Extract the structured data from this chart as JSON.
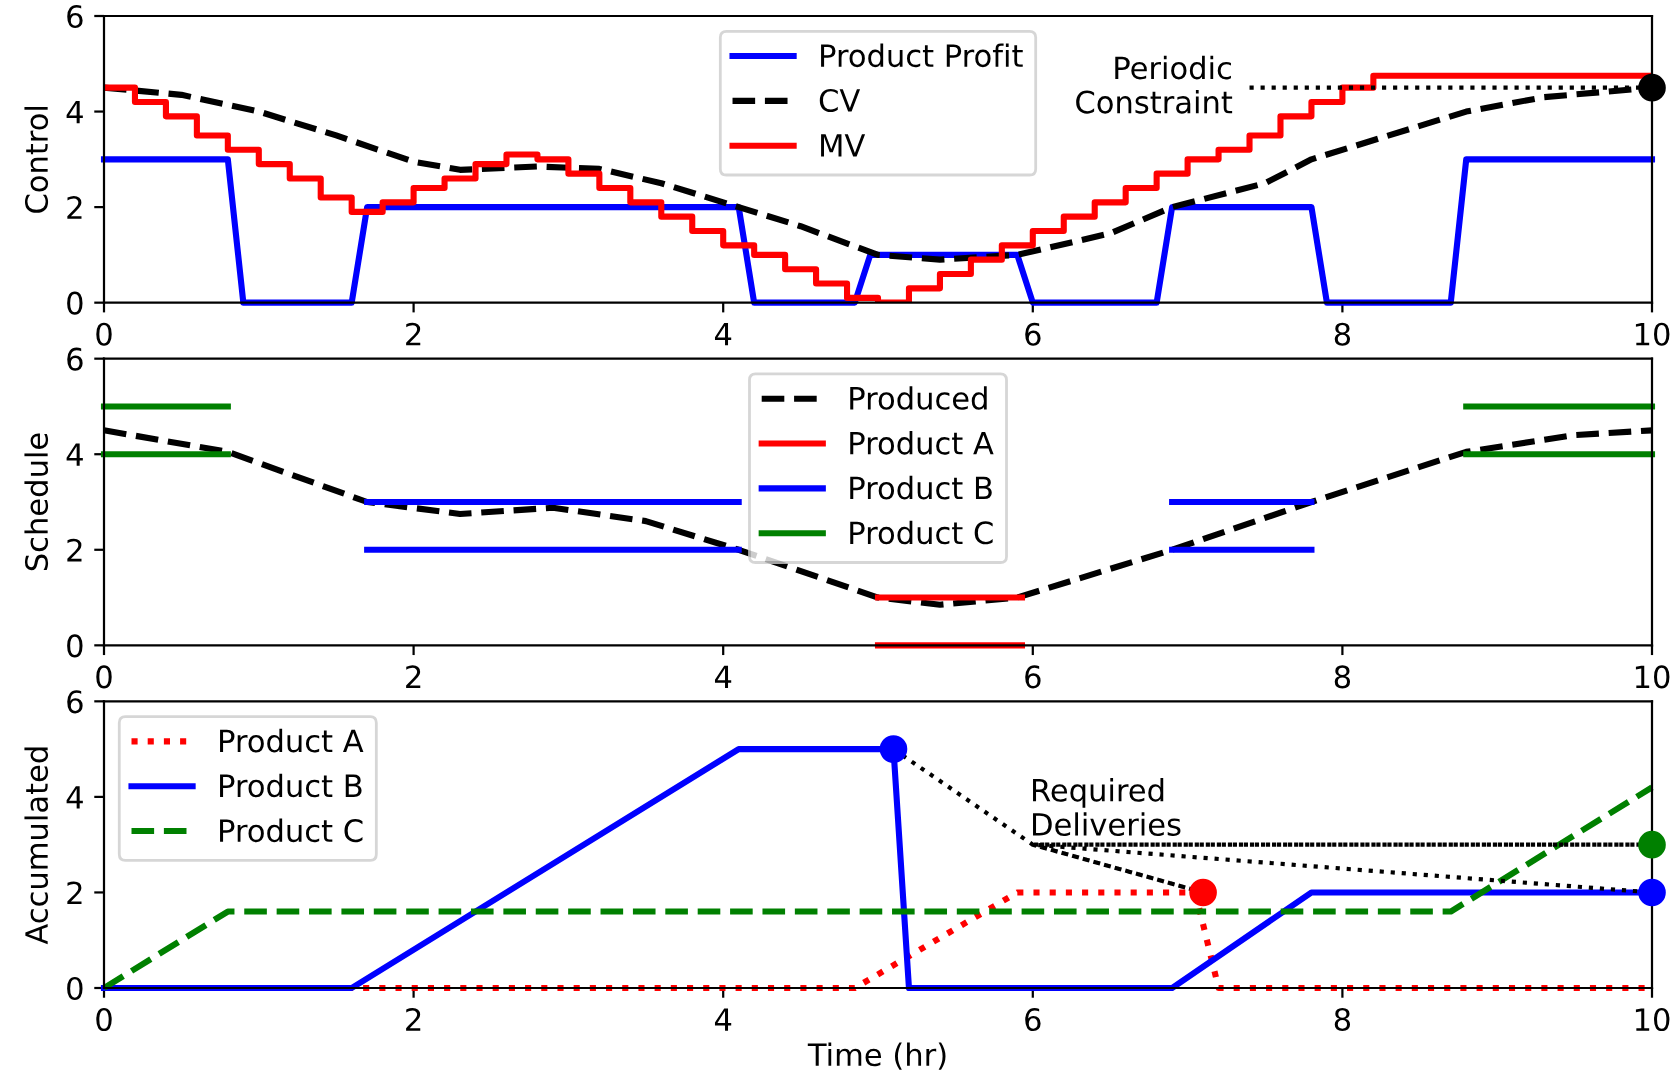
{
  "chart_data": [
    {
      "type": "line",
      "ylabel": "Control",
      "xlim": [
        0,
        10
      ],
      "ylim": [
        0,
        6
      ],
      "xticks": [
        0,
        2,
        4,
        6,
        8,
        10
      ],
      "yticks": [
        0,
        2,
        4,
        6
      ],
      "grid": false,
      "legend": "top",
      "annotations": [
        "Periodic\nConstraint"
      ],
      "series": [
        {
          "name": "Product Profit",
          "color": "#0000ff",
          "line_style": "solid",
          "x": [
            0,
            0.8,
            0.9,
            1.6,
            1.7,
            4.1,
            4.2,
            4.85,
            4.95,
            5.9,
            6.0,
            6.8,
            6.9,
            7.8,
            7.9,
            8.7,
            8.8,
            10
          ],
          "values": [
            3,
            3,
            0,
            0,
            2,
            2,
            0,
            0,
            1,
            1,
            0,
            0,
            2,
            2,
            0,
            0,
            3,
            3
          ]
        },
        {
          "name": "CV",
          "color": "#000000",
          "line_style": "dashed",
          "x": [
            0,
            0.5,
            1,
            1.5,
            2,
            2.3,
            2.8,
            3.2,
            3.6,
            4.1,
            4.5,
            5,
            5.4,
            5.9,
            6.5,
            6.9,
            7.5,
            7.8,
            8.5,
            8.8,
            9.3,
            10
          ],
          "values": [
            4.5,
            4.35,
            4.0,
            3.5,
            2.95,
            2.78,
            2.85,
            2.8,
            2.5,
            2.0,
            1.6,
            1.0,
            0.9,
            1.0,
            1.45,
            2.0,
            2.5,
            3.0,
            3.7,
            4.0,
            4.3,
            4.5
          ]
        },
        {
          "name": "MV",
          "type": "step",
          "color": "#ff0000",
          "line_style": "solid",
          "x": [
            0,
            0.2,
            0.4,
            0.6,
            0.8,
            1.0,
            1.2,
            1.4,
            1.6,
            1.8,
            2.0,
            2.2,
            2.4,
            2.6,
            2.8,
            3.0,
            3.2,
            3.4,
            3.6,
            3.8,
            4.0,
            4.2,
            4.4,
            4.6,
            4.8,
            5.0,
            5.2,
            5.4,
            5.6,
            5.8,
            6.0,
            6.2,
            6.4,
            6.6,
            6.8,
            7.0,
            7.2,
            7.4,
            7.6,
            7.8,
            8.0,
            8.2,
            8.4,
            8.6,
            8.8,
            9.0,
            9.2,
            9.4,
            9.6,
            9.8,
            10
          ],
          "values": [
            4.5,
            4.2,
            3.9,
            3.5,
            3.2,
            2.9,
            2.6,
            2.2,
            1.9,
            2.1,
            2.4,
            2.6,
            2.9,
            3.1,
            3.0,
            2.7,
            2.4,
            2.1,
            1.8,
            1.5,
            1.2,
            1.0,
            0.7,
            0.4,
            0.1,
            0,
            0.3,
            0.6,
            0.9,
            1.2,
            1.5,
            1.8,
            2.1,
            2.4,
            2.7,
            3.0,
            3.2,
            3.5,
            3.9,
            4.2,
            4.5,
            4.75,
            4.75,
            4.75,
            4.75,
            4.75,
            4.75,
            4.75,
            4.75,
            4.75,
            4.75
          ]
        },
        {
          "color": "#000000",
          "line_style": "dotted",
          "x": [
            7.4,
            10
          ],
          "values": [
            4.5,
            4.5
          ]
        },
        {
          "type": "scatter",
          "color": "#000000",
          "marker": "circle",
          "x": [
            10
          ],
          "values": [
            4.5
          ]
        }
      ]
    },
    {
      "type": "line",
      "ylabel": "Schedule",
      "xlim": [
        0,
        10
      ],
      "ylim": [
        0,
        6
      ],
      "xticks": [
        0,
        2,
        4,
        6,
        8,
        10
      ],
      "yticks": [
        0,
        2,
        4,
        6
      ],
      "grid": false,
      "legend": "top",
      "series": [
        {
          "name": "Produced",
          "color": "#000000",
          "line_style": "dashed",
          "x": [
            0,
            0.8,
            1.7,
            2.3,
            2.9,
            3.5,
            4.1,
            5.0,
            5.4,
            5.9,
            6.9,
            7.8,
            8.8,
            9.5,
            10
          ],
          "values": [
            4.5,
            4.05,
            3.0,
            2.75,
            2.88,
            2.6,
            2.0,
            1.0,
            0.85,
            1.0,
            2.0,
            3.0,
            4.05,
            4.4,
            4.5
          ]
        },
        {
          "name": "Product A",
          "color": "#ff0000",
          "line_style": "solid",
          "x": [
            5.0,
            5.93
          ],
          "values": [
            1,
            1
          ]
        },
        {
          "color": "#ff0000",
          "line_style": "solid",
          "x": [
            5.0,
            5.93
          ],
          "values": [
            0,
            0
          ]
        },
        {
          "name": "Product B",
          "color": "#0000ff",
          "line_style": "solid",
          "x": [
            1.7,
            4.1
          ],
          "values": [
            3,
            3
          ]
        },
        {
          "color": "#0000ff",
          "line_style": "solid",
          "x": [
            1.7,
            4.1
          ],
          "values": [
            2,
            2
          ]
        },
        {
          "color": "#0000ff",
          "line_style": "solid",
          "x": [
            6.9,
            7.8
          ],
          "values": [
            3,
            3
          ]
        },
        {
          "color": "#0000ff",
          "line_style": "solid",
          "x": [
            6.9,
            7.8
          ],
          "values": [
            2,
            2
          ]
        },
        {
          "name": "Product C",
          "color": "#008000",
          "line_style": "solid",
          "x": [
            0,
            0.8
          ],
          "values": [
            5,
            5
          ]
        },
        {
          "color": "#008000",
          "line_style": "solid",
          "x": [
            0,
            0.8
          ],
          "values": [
            4,
            4
          ]
        },
        {
          "color": "#008000",
          "line_style": "solid",
          "x": [
            8.8,
            10
          ],
          "values": [
            5,
            5
          ]
        },
        {
          "color": "#008000",
          "line_style": "solid",
          "x": [
            8.8,
            10
          ],
          "values": [
            4,
            4
          ]
        }
      ]
    },
    {
      "type": "line",
      "ylabel": "Accumulated",
      "xlabel": "Time (hr)",
      "xlim": [
        0,
        10
      ],
      "ylim": [
        0,
        6
      ],
      "xticks": [
        0,
        2,
        4,
        6,
        8,
        10
      ],
      "yticks": [
        0,
        2,
        4,
        6
      ],
      "grid": false,
      "legend": "top left",
      "annotations": [
        "Required\nDeliveries"
      ],
      "series": [
        {
          "name": "Product A",
          "color": "#ff0000",
          "line_style": "dotted",
          "x": [
            0,
            4.85,
            5.9,
            7.05,
            7.2,
            10
          ],
          "values": [
            0,
            0,
            2,
            2,
            0,
            0
          ]
        },
        {
          "name": "Product B",
          "color": "#0000ff",
          "line_style": "solid",
          "x": [
            0,
            1.6,
            4.1,
            5.1,
            5.2,
            6.9,
            7.8,
            10
          ],
          "values": [
            0,
            0,
            5,
            5,
            0,
            0,
            2,
            2
          ]
        },
        {
          "name": "Product C",
          "color": "#008000",
          "line_style": "dashed",
          "x": [
            0,
            0.8,
            8.7,
            10
          ],
          "values": [
            0,
            1.6,
            1.6,
            4.2
          ]
        },
        {
          "color": "#000000",
          "line_style": "dotted",
          "x": [
            5.1,
            6.0,
            7.1,
            6.0,
            10,
            6.0,
            10
          ],
          "values": [
            5,
            3,
            2,
            3,
            3,
            3,
            2
          ]
        },
        {
          "type": "scatter",
          "marker": "circle",
          "colors": [
            "#0000ff",
            "#ff0000",
            "#008000",
            "#0000ff"
          ],
          "x": [
            5.1,
            7.1,
            10,
            10
          ],
          "values": [
            5,
            2,
            3,
            2
          ]
        }
      ]
    }
  ]
}
